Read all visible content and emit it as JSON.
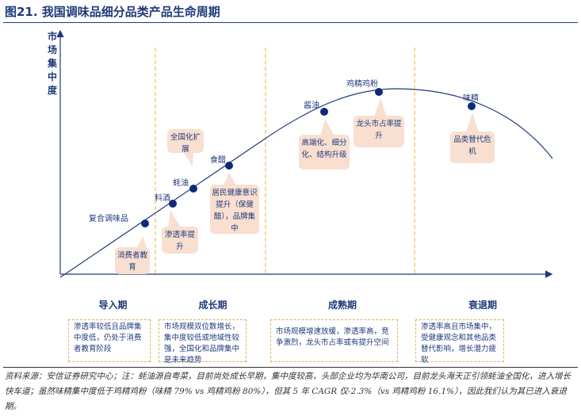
{
  "title": "图21. 我国调味品细分品类产品生命周期",
  "y_axis_label": "市场集中度",
  "products": [
    {
      "name": "复合调味品"
    },
    {
      "name": "料酒"
    },
    {
      "name": "蚝油"
    },
    {
      "name": "食醋"
    },
    {
      "name": "酱油"
    },
    {
      "name": "鸡精鸡粉"
    },
    {
      "name": "味精"
    }
  ],
  "callouts": [
    "消费者教育",
    "渗透率提升",
    "全国化扩展",
    "居民健康意识提升（保健醋），品牌集中",
    "高端化、细分化、结构升级",
    "龙头市占率提升",
    "品类替代危机"
  ],
  "stages": [
    {
      "name": "导入期",
      "desc": "渗透率较低且品牌集中度低，仍处于消费者教育阶段"
    },
    {
      "name": "成长期",
      "desc": "市场规模双位数增长，集中度较低或地域性较强，全国化和品牌集中是未来趋势"
    },
    {
      "name": "成熟期",
      "desc": "市场规模增速放缓，渗透率高，竞争激烈，龙头市占率或有提升空间"
    },
    {
      "name": "衰退期",
      "desc": "渗透率高且市场集中，受健康观念和其他品类替代影响，增长潜力疲软"
    }
  ],
  "footnote": "资料来源：安信证券研究中心；注：蚝油源自粤菜，目前尚处成长早期，集中度较高，头部企业均为华南公司，目前龙头海天正引领蚝油全国化，进入增长快车道；虽然味精集中度低于鸡精鸡粉（味精 79% vs 鸡精鸡粉 80%），但其 5 年 CAGR 仅-2.3%（vs 鸡精鸡粉 16.1%），因此我们认为其已进入衰退期。",
  "colors": {
    "navy": "#1f3a7a",
    "stage": "#fbe3a6",
    "callout": "#f8dfd0",
    "dash": "#f0b429"
  }
}
